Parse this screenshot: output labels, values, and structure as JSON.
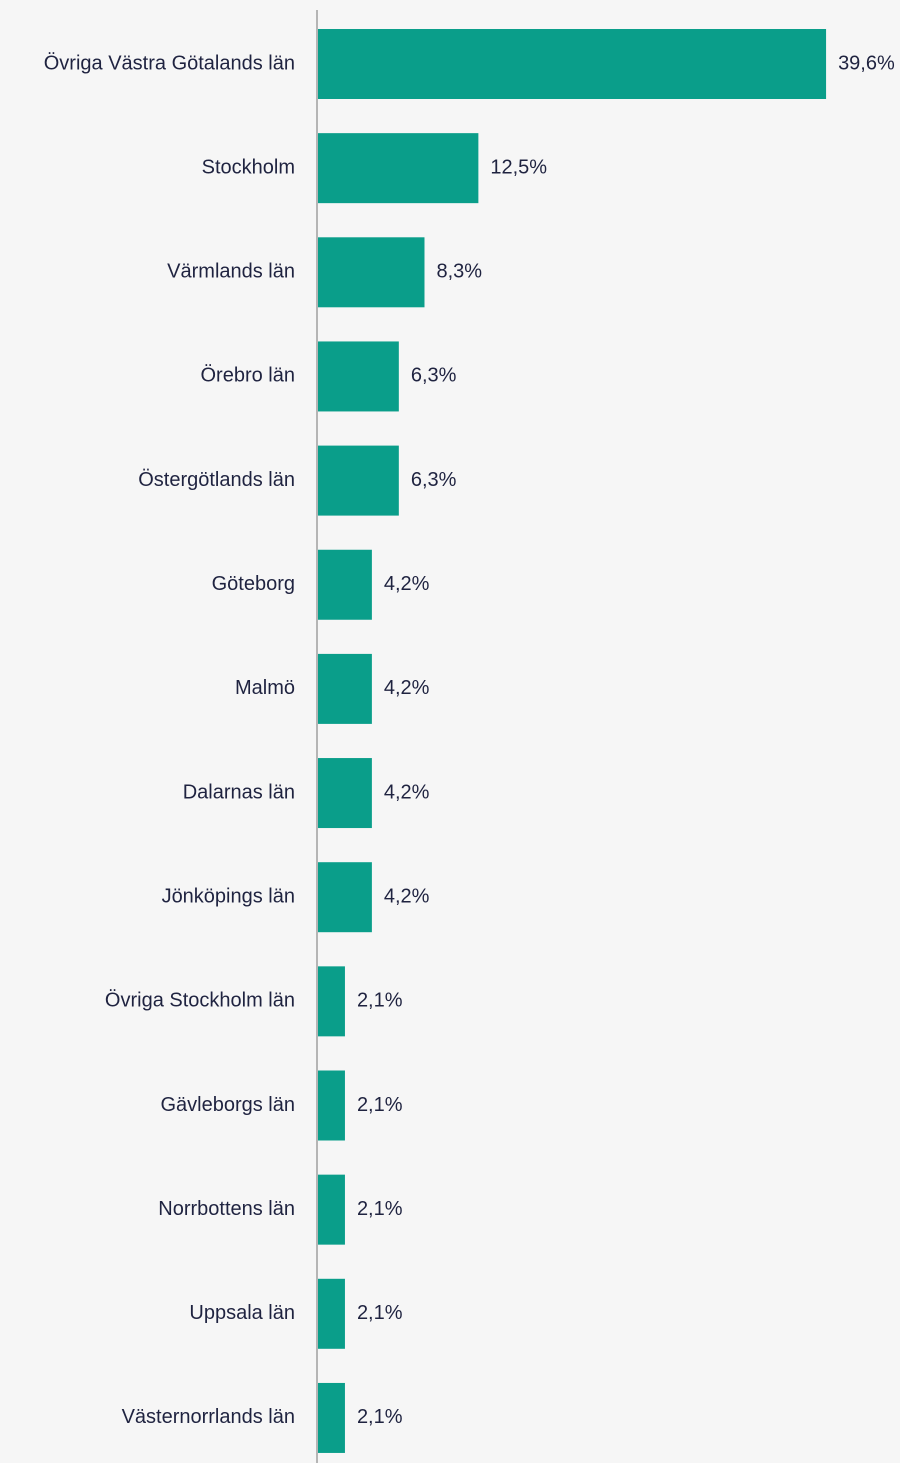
{
  "chart_data": {
    "type": "bar",
    "orientation": "horizontal",
    "color": "#0a9e8a",
    "categories": [
      "Övriga Västra Götalands län",
      "Stockholm",
      "Värmlands län",
      "Örebro län",
      "Östergötlands län",
      "Göteborg",
      "Malmö",
      "Dalarnas län",
      "Jönköpings län",
      "Övriga Stockholm län",
      "Gävleborgs län",
      "Norrbottens län",
      "Uppsala län",
      "Västernorrlands län"
    ],
    "values": [
      39.6,
      12.5,
      8.3,
      6.3,
      6.3,
      4.2,
      4.2,
      4.2,
      4.2,
      2.1,
      2.1,
      2.1,
      2.1,
      2.1
    ],
    "value_labels": [
      "39,6%",
      "12,5%",
      "8,3%",
      "6,3%",
      "6,3%",
      "4,2%",
      "4,2%",
      "4,2%",
      "4,2%",
      "2,1%",
      "2,1%",
      "2,1%",
      "2,1%",
      "2,1%"
    ]
  }
}
